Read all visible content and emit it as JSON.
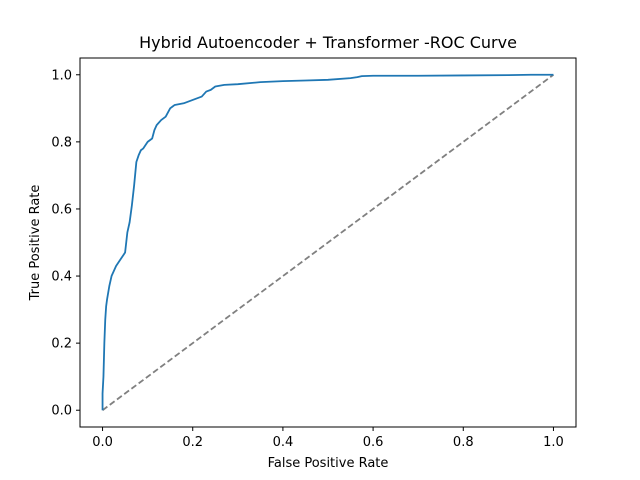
{
  "chart_data": {
    "type": "line",
    "title": "Hybrid Autoencoder + Transformer -ROC Curve",
    "xlabel": "False Positive Rate",
    "ylabel": "True Positive Rate",
    "xlim": [
      -0.05,
      1.05
    ],
    "ylim": [
      -0.05,
      1.05
    ],
    "xticks": [
      0.0,
      0.2,
      0.4,
      0.6,
      0.8,
      1.0
    ],
    "yticks": [
      0.0,
      0.2,
      0.4,
      0.6,
      0.8,
      1.0
    ],
    "tick_labels_x": [
      "0.0",
      "0.2",
      "0.4",
      "0.6",
      "0.8",
      "1.0"
    ],
    "tick_labels_y": [
      "0.0",
      "0.2",
      "0.4",
      "0.6",
      "0.8",
      "1.0"
    ],
    "grid": false,
    "legend": "none",
    "series": [
      {
        "color": "#1f77b4",
        "style": "solid",
        "x": [
          0.0,
          0.0,
          0.002,
          0.004,
          0.006,
          0.008,
          0.01,
          0.015,
          0.02,
          0.025,
          0.03,
          0.04,
          0.05,
          0.055,
          0.06,
          0.065,
          0.07,
          0.075,
          0.08,
          0.085,
          0.09,
          0.1,
          0.11,
          0.115,
          0.12,
          0.13,
          0.14,
          0.15,
          0.155,
          0.16,
          0.18,
          0.2,
          0.22,
          0.23,
          0.24,
          0.25,
          0.27,
          0.3,
          0.35,
          0.4,
          0.45,
          0.5,
          0.55,
          0.565,
          0.575,
          0.6,
          0.7,
          0.8,
          0.9,
          0.95,
          1.0
        ],
        "y": [
          0.0,
          0.05,
          0.1,
          0.2,
          0.27,
          0.31,
          0.33,
          0.37,
          0.4,
          0.415,
          0.43,
          0.45,
          0.47,
          0.53,
          0.56,
          0.61,
          0.67,
          0.74,
          0.76,
          0.775,
          0.78,
          0.8,
          0.81,
          0.835,
          0.85,
          0.865,
          0.875,
          0.9,
          0.905,
          0.91,
          0.915,
          0.925,
          0.935,
          0.95,
          0.955,
          0.965,
          0.97,
          0.972,
          0.978,
          0.981,
          0.983,
          0.985,
          0.99,
          0.993,
          0.996,
          0.997,
          0.997,
          0.998,
          0.999,
          1.0,
          1.0
        ]
      },
      {
        "color": "#808080",
        "style": "dashed",
        "x": [
          0.0,
          1.0
        ],
        "y": [
          0.0,
          1.0
        ]
      }
    ]
  }
}
